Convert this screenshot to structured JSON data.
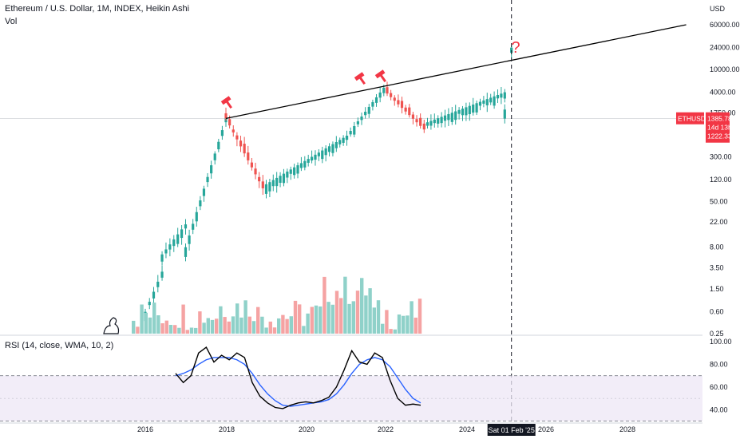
{
  "header": {
    "title": "Ethereum / U.S. Dollar, 1M, INDEX, Heikin Ashi",
    "volume_label": "Vol"
  },
  "price_axis": {
    "currency": "USD",
    "ticks": [
      "60000.00",
      "24000.00",
      "10000.00",
      "4000.00",
      "1750.00",
      "300.00",
      "120.00",
      "50.00",
      "22.00",
      "8.00",
      "3.50",
      "1.50",
      "0.60",
      "0.25"
    ]
  },
  "symbol_label": {
    "symbol": "ETHUSD",
    "price": "1385.78",
    "countdown": "14d 13h",
    "second_price": "1222.33",
    "color": "#f23645"
  },
  "rsi": {
    "title": "RSI (14, close, WMA, 10, 2)",
    "ticks": [
      "100.00",
      "80.00",
      "60.00",
      "40.00"
    ],
    "upper_band": 70,
    "lower_band": 30,
    "mid_band": 50
  },
  "time_axis": {
    "ticks": [
      "2016",
      "2018",
      "2020",
      "2022",
      "2024",
      "2026",
      "2028"
    ],
    "cursor_label": "Sat 01 Feb '25"
  },
  "annotations": {
    "question_mark": "?",
    "hammer_icon": "hammer-icon",
    "mascot_icon": "dino-icon",
    "colors": {
      "up": "#26a69a",
      "down": "#ef5350",
      "trend": "#000000",
      "rsi": "#000000",
      "rsi_ma": "#2962ff",
      "marker": "#f23645"
    }
  },
  "chart_data": {
    "type": "candlestick",
    "scale": "log",
    "price_segments": [
      {
        "from": "2016",
        "to": "2016-06",
        "low": 0.6,
        "high": 3.0
      },
      {
        "from": "2016-06",
        "to": "2017-01",
        "low": 6,
        "high": 20
      },
      {
        "from": "2017-01",
        "to": "2018-01",
        "low": 8,
        "high": 1400
      },
      {
        "from": "2018-01",
        "to": "2018-12",
        "low": 85,
        "high": 1400
      },
      {
        "from": "2019-01",
        "to": "2021-01",
        "low": 100,
        "high": 700
      },
      {
        "from": "2021-01",
        "to": "2021-12",
        "low": 700,
        "high": 4800
      },
      {
        "from": "2022-01",
        "to": "2022-12",
        "low": 900,
        "high": 3800
      },
      {
        "from": "2023-01",
        "to": "2024-12",
        "low": 1200,
        "high": 4000
      },
      {
        "from": "2024-12",
        "to": "2025-02",
        "low": 2000,
        "high": 24000
      }
    ],
    "trendline": {
      "from": [
        "2018-01",
        1400
      ],
      "to": [
        "2029-06",
        60000
      ]
    },
    "cursor": "2025-02",
    "rsi_values": [
      72,
      64,
      70,
      90,
      95,
      82,
      88,
      84,
      90,
      86,
      64,
      52,
      46,
      42,
      41,
      44,
      46,
      47,
      46,
      48,
      51,
      60,
      75,
      92,
      82,
      80,
      90,
      86,
      66,
      50,
      44,
      45,
      44
    ],
    "rsi_ma_values": [
      70,
      72,
      75,
      80,
      84,
      86,
      86,
      86,
      84,
      80,
      72,
      62,
      54,
      48,
      44,
      43,
      44,
      45,
      46,
      47,
      49,
      54,
      62,
      72,
      80,
      84,
      86,
      84,
      78,
      68,
      58,
      50,
      46
    ]
  }
}
